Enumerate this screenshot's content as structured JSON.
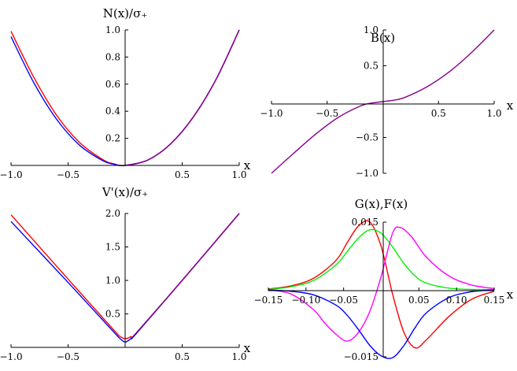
{
  "chart_data": [
    {
      "id": "panel-n",
      "type": "line",
      "title": "N(x)/σ₊",
      "xlabel": "x",
      "ylabel": "",
      "xlim": [
        -1.0,
        1.0
      ],
      "ylim": [
        0,
        1.0
      ],
      "xticks": [
        -1.0,
        -0.5,
        0.5,
        1.0
      ],
      "xtick_labels": [
        "−1.0",
        "−0.5",
        "0.5",
        "1.0"
      ],
      "yticks": [
        0.2,
        0.4,
        0.6,
        0.8,
        1.0
      ],
      "ytick_labels": [
        "0.2",
        "0.4",
        "0.6",
        "0.8",
        "1.0"
      ],
      "grid": false,
      "series": [
        {
          "color": "#ff0000",
          "x": [
            -1.0,
            -0.8,
            -0.6,
            -0.4,
            -0.2,
            -0.1,
            0.0,
            0.2,
            0.4,
            0.6,
            0.8,
            1.0
          ],
          "y": [
            0.99,
            0.65,
            0.37,
            0.17,
            0.045,
            0.012,
            0.0,
            0.04,
            0.16,
            0.36,
            0.64,
            1.0
          ]
        },
        {
          "color": "#0000ff",
          "x": [
            -1.0,
            -0.8,
            -0.6,
            -0.4,
            -0.2,
            -0.1,
            0.0,
            0.2,
            0.4,
            0.6,
            0.8,
            1.0
          ],
          "y": [
            0.95,
            0.61,
            0.34,
            0.15,
            0.037,
            0.009,
            0.0,
            0.04,
            0.16,
            0.36,
            0.64,
            1.0
          ]
        },
        {
          "color": "#8b008b",
          "x": [
            0.0,
            0.2,
            0.4,
            0.6,
            0.8,
            1.0
          ],
          "y": [
            0.0,
            0.04,
            0.16,
            0.36,
            0.64,
            1.0
          ]
        }
      ]
    },
    {
      "id": "panel-b",
      "type": "line",
      "title": "B(x)",
      "xlabel": "x",
      "ylabel": "",
      "xlim": [
        -1.0,
        1.0
      ],
      "ylim": [
        -1.0,
        1.0
      ],
      "xticks": [
        -1.0,
        -0.5,
        0.5,
        1.0
      ],
      "xtick_labels": [
        "−1.0",
        "−0.5",
        "0.5",
        "1.0"
      ],
      "yticks": [
        -1.0,
        -0.5,
        0.5,
        1.0
      ],
      "ytick_labels": [
        "−1.0",
        "−0.5",
        "0.5",
        "1.0"
      ],
      "grid": false,
      "series": [
        {
          "color": "#8b008b",
          "x": [
            -1.0,
            -0.8,
            -0.6,
            -0.4,
            -0.2,
            -0.1,
            0.0,
            0.1,
            0.2,
            0.4,
            0.6,
            0.8,
            1.0
          ],
          "y": [
            -1.0,
            -0.72,
            -0.45,
            -0.22,
            -0.06,
            -0.02,
            0.0,
            0.02,
            0.06,
            0.21,
            0.42,
            0.69,
            1.0
          ]
        }
      ]
    },
    {
      "id": "panel-v",
      "type": "line",
      "title": "V'(x)/σ₊",
      "xlabel": "x",
      "ylabel": "",
      "xlim": [
        -1.0,
        1.0
      ],
      "ylim": [
        0,
        2.0
      ],
      "xticks": [
        -1.0,
        -0.5,
        0.5,
        1.0
      ],
      "xtick_labels": [
        "−1.0",
        "−0.5",
        "0.5",
        "1.0"
      ],
      "yticks": [
        0.5,
        1.0,
        1.5,
        2.0
      ],
      "ytick_labels": [
        "0.5",
        "1.0",
        "1.5",
        "2.0"
      ],
      "grid": false,
      "series": [
        {
          "color": "#ff0000",
          "x": [
            -1.0,
            -0.5,
            -0.1,
            -0.05,
            0.0,
            0.05,
            0.1,
            0.5,
            1.0
          ],
          "y": [
            1.98,
            1.02,
            0.26,
            0.17,
            0.13,
            0.16,
            0.22,
            1.0,
            2.0
          ]
        },
        {
          "color": "#0000ff",
          "x": [
            -1.0,
            -0.5,
            -0.1,
            -0.05,
            0.0,
            0.05,
            0.1,
            0.5,
            1.0
          ],
          "y": [
            1.88,
            0.97,
            0.23,
            0.14,
            0.08,
            0.13,
            0.21,
            1.0,
            2.0
          ]
        },
        {
          "color": "#8b008b",
          "x": [
            0.1,
            0.5,
            1.0
          ],
          "y": [
            0.22,
            1.0,
            2.0
          ]
        }
      ]
    },
    {
      "id": "panel-gf",
      "type": "line",
      "title": "G(x),F(x)",
      "xlabel": "x",
      "ylabel": "",
      "xlim": [
        -0.15,
        0.15
      ],
      "ylim": [
        -0.015,
        0.015
      ],
      "xticks": [
        -0.15,
        -0.1,
        -0.05,
        0.05,
        0.1,
        0.15
      ],
      "xtick_labels": [
        "−0.15",
        "−0.10",
        "−0.05",
        "0.05",
        "0.10",
        "0.15"
      ],
      "yticks": [
        -0.015,
        0.015
      ],
      "ytick_labels": [
        "−0.015",
        "0.015"
      ],
      "grid": false,
      "series": [
        {
          "color": "#ff0000",
          "x": [
            -0.15,
            -0.12,
            -0.09,
            -0.06,
            -0.045,
            -0.03,
            -0.015,
            0.0,
            0.015,
            0.03,
            0.045,
            0.06,
            0.09,
            0.12,
            0.15
          ],
          "y": [
            0.0001,
            0.0008,
            0.0025,
            0.0065,
            0.0105,
            0.0142,
            0.015,
            0.0095,
            -0.001,
            -0.0095,
            -0.013,
            -0.0112,
            -0.006,
            -0.0022,
            -0.0004
          ]
        },
        {
          "color": "#00ee00",
          "x": [
            -0.15,
            -0.12,
            -0.09,
            -0.06,
            -0.045,
            -0.03,
            -0.015,
            0.0,
            0.015,
            0.03,
            0.045,
            0.06,
            0.09,
            0.12,
            0.15
          ],
          "y": [
            0.0,
            0.0006,
            0.002,
            0.0055,
            0.0085,
            0.0115,
            0.0133,
            0.0125,
            0.0095,
            0.0058,
            0.003,
            0.0014,
            0.0003,
            0.0,
            0.0
          ]
        },
        {
          "color": "#ff00ff",
          "x": [
            -0.15,
            -0.12,
            -0.09,
            -0.075,
            -0.06,
            -0.045,
            -0.03,
            -0.015,
            0.0,
            0.015,
            0.025,
            0.04,
            0.06,
            0.09,
            0.12,
            0.15
          ],
          "y": [
            -0.0001,
            -0.001,
            -0.0045,
            -0.0075,
            -0.01,
            -0.0115,
            -0.0095,
            -0.0048,
            0.003,
            0.0125,
            0.0138,
            0.0118,
            0.0072,
            0.003,
            0.001,
            0.0002
          ]
        },
        {
          "color": "#0000ff",
          "x": [
            -0.15,
            -0.12,
            -0.09,
            -0.06,
            -0.045,
            -0.03,
            -0.015,
            0.0,
            0.015,
            0.03,
            0.045,
            0.06,
            0.09,
            0.12,
            0.15
          ],
          "y": [
            -0.0001,
            -0.0004,
            -0.0012,
            -0.0035,
            -0.0058,
            -0.009,
            -0.0125,
            -0.0148,
            -0.0152,
            -0.0125,
            -0.0085,
            -0.0052,
            -0.0018,
            -0.0005,
            -0.0001
          ]
        }
      ]
    }
  ]
}
